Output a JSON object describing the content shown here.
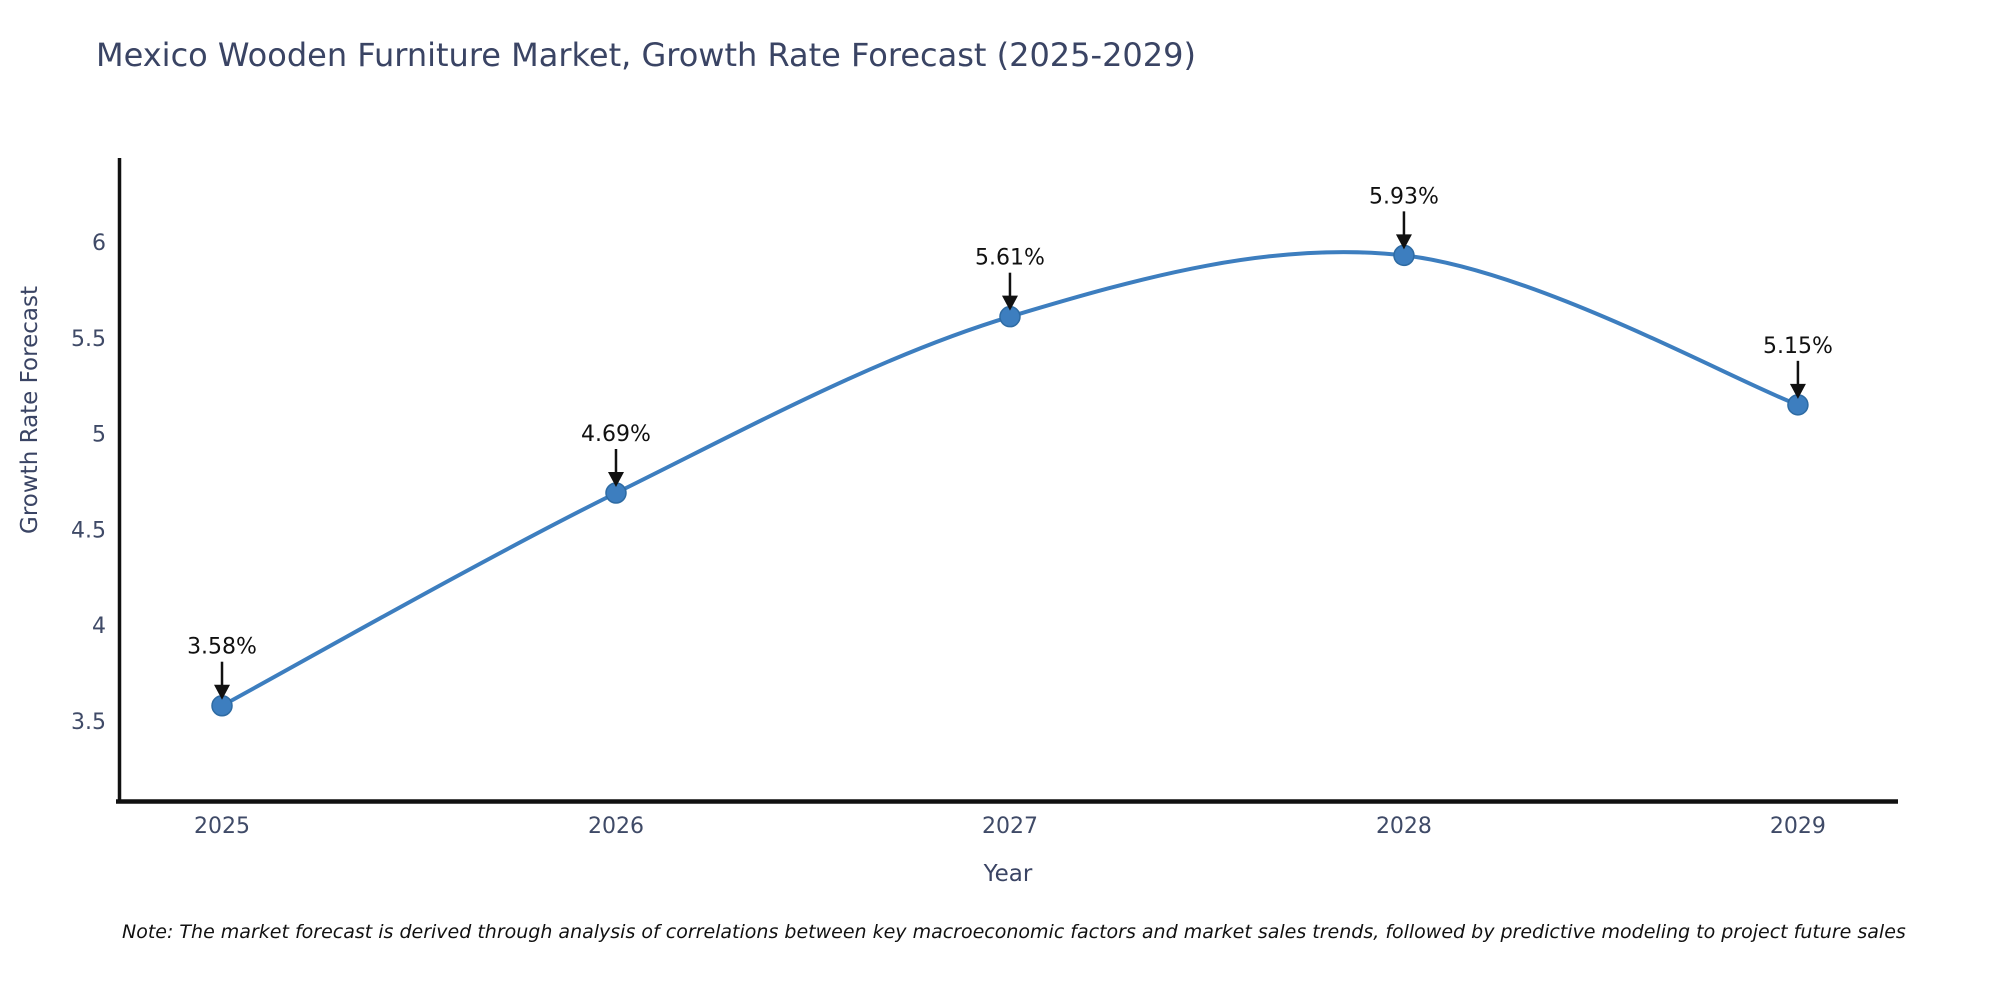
{
  "title": "Mexico Wooden Furniture Market, Growth Rate Forecast (2025-2029)",
  "note": "Note: The market forecast is derived through analysis of correlations between key macroeconomic factors and market sales trends, followed by predictive modeling to project future sales",
  "chart_data": {
    "type": "line",
    "title": "Mexico Wooden Furniture Market, Growth Rate Forecast (2025-2029)",
    "xlabel": "Year",
    "ylabel": "Growth Rate Forecast",
    "x": [
      2025,
      2026,
      2027,
      2028,
      2029
    ],
    "series": [
      {
        "name": "Growth Rate Forecast",
        "values": [
          3.58,
          4.69,
          5.61,
          5.93,
          5.15
        ]
      }
    ],
    "point_labels": [
      "3.58%",
      "4.69%",
      "5.61%",
      "5.93%",
      "5.15%"
    ],
    "xticks": [
      "2025",
      "2026",
      "2027",
      "2028",
      "2029"
    ],
    "yticks": [
      "3.5",
      "4",
      "4.5",
      "5",
      "5.5",
      "6"
    ],
    "ytick_values": [
      3.5,
      4.0,
      4.5,
      5.0,
      5.5,
      6.0
    ],
    "xlim": [
      2024.736,
      2029.254
    ],
    "ylim": [
      3.088,
      6.438
    ],
    "grid": false,
    "legend_position": "none",
    "smooth": true,
    "colors": {
      "line": "#3d7ebf",
      "marker_fill": "#3d7ebf",
      "marker_edge": "#2e6ba3",
      "axis": "#111111",
      "annotation": "#111111",
      "tick_text": "#3f4a67"
    }
  }
}
